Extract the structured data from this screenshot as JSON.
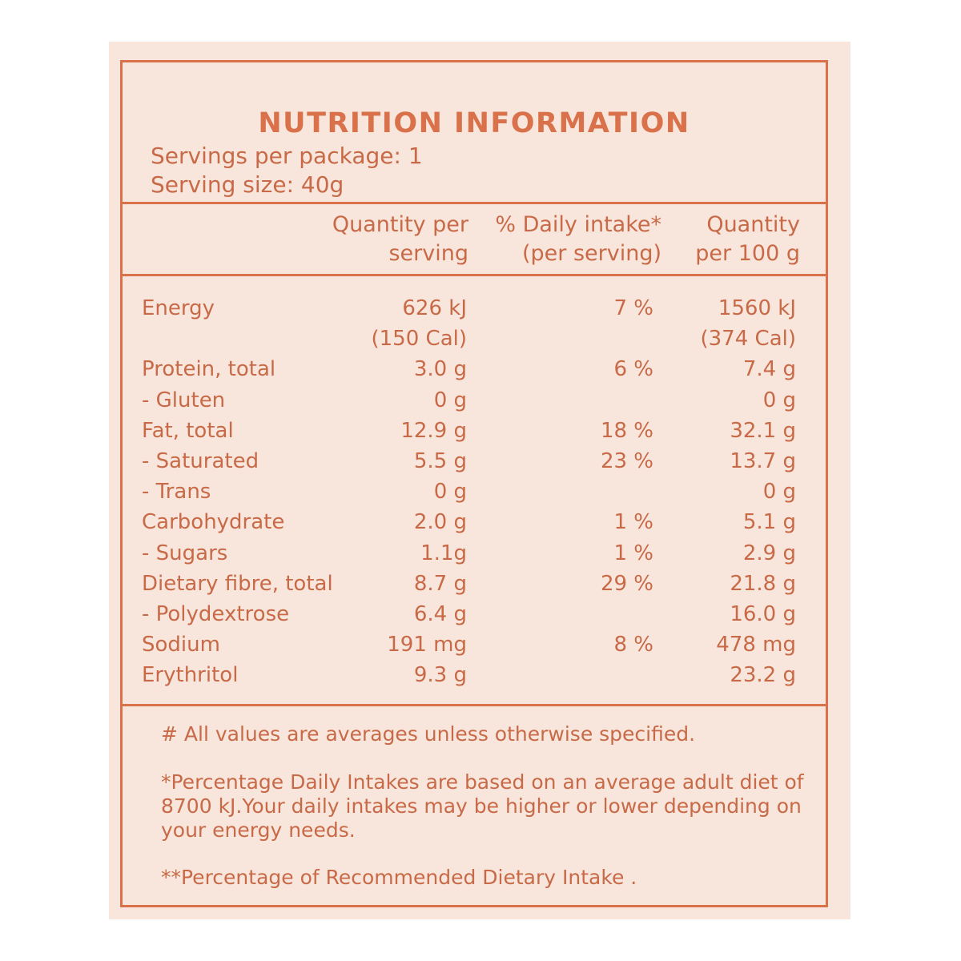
{
  "title": "NUTRITION INFORMATION",
  "servings_per_package": "Servings per package: 1",
  "serving_size": "Serving size: 40g",
  "headers": {
    "qty_serving_1": "Quantity per",
    "qty_serving_2": "serving",
    "daily_1": "% Daily intake*",
    "daily_2": "(per serving)",
    "qty_100_1": "Quantity",
    "qty_100_2": "per 100 g"
  },
  "rows": [
    {
      "name": "Energy",
      "per_serving": "626 kJ",
      "daily": "7 %",
      "per_100g": "1560 kJ"
    },
    {
      "name": "",
      "per_serving": "(150 Cal)",
      "daily": "",
      "per_100g": "(374 Cal)"
    },
    {
      "name": "Protein, total",
      "per_serving": "3.0 g",
      "daily": "6 %",
      "per_100g": "7.4 g"
    },
    {
      "name": "- Gluten",
      "per_serving": "0 g",
      "daily": "",
      "per_100g": "0 g"
    },
    {
      "name": "Fat, total",
      "per_serving": "12.9 g",
      "daily": "18 %",
      "per_100g": "32.1 g"
    },
    {
      "name": "- Saturated",
      "per_serving": "5.5 g",
      "daily": "23 %",
      "per_100g": "13.7 g"
    },
    {
      "name": "- Trans",
      "per_serving": "0 g",
      "daily": "",
      "per_100g": "0 g"
    },
    {
      "name": "Carbohydrate",
      "per_serving": "2.0 g",
      "daily": "1 %",
      "per_100g": "5.1 g"
    },
    {
      "name": "- Sugars",
      "per_serving": "1.1g",
      "daily": "1 %",
      "per_100g": "2.9 g"
    },
    {
      "name": "Dietary fibre, total",
      "per_serving": "8.7 g",
      "daily": "29 %",
      "per_100g": "21.8 g"
    },
    {
      "name": "- Polydextrose",
      "per_serving": "6.4 g",
      "daily": "",
      "per_100g": "16.0 g"
    },
    {
      "name": "Sodium",
      "per_serving": "191 mg",
      "daily": "8 %",
      "per_100g": "478 mg"
    },
    {
      "name": "Erythritol",
      "per_serving": "9.3 g",
      "daily": "",
      "per_100g": "23.2 g"
    }
  ],
  "footnotes": {
    "averages": "# All values are averages unless otherwise specified.",
    "daily_intake": "*Percentage Daily Intakes are based on an average adult diet of 8700 kJ.Your daily intakes may be higher or lower depending on your energy needs.",
    "rdi": "**Percentage of Recommended Dietary Intake ."
  },
  "colors": {
    "accent": "#d9714a",
    "text": "#c86a47",
    "background": "#f8e6dc"
  }
}
